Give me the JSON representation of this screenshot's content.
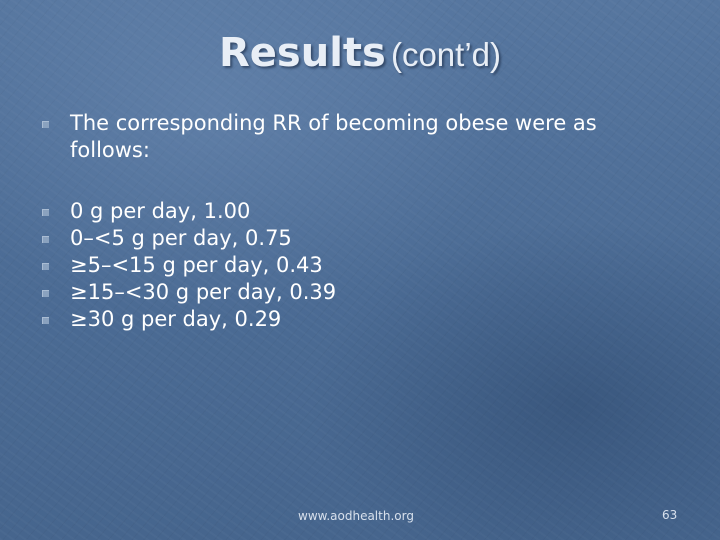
{
  "slide": {
    "title_main": "Results",
    "title_sub": "(cont’d)",
    "intro_bullet": "The corresponding RR of becoming obese were as follows:",
    "items": [
      "0 g per day, 1.00",
      "0–<5 g per day, 0.75",
      "≥5–<15 g per day, 0.43",
      "≥15–<30 g per day, 0.39",
      "≥30 g per day, 0.29"
    ]
  },
  "footer": {
    "source": "www.aodhealth.org",
    "slide_number": "63"
  },
  "colors": {
    "background": "#4f6f98",
    "text": "#ffffff",
    "bullet": "#8aa2bf"
  },
  "icons": {
    "bullet": "square-bullet-icon"
  }
}
